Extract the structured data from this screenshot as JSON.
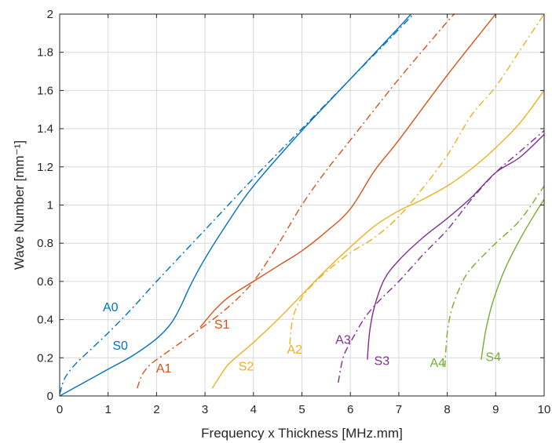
{
  "chart_data": {
    "type": "line",
    "xlabel": "Frequency x Thickness [MHz.mm]",
    "ylabel": "Wave Number [mm⁻¹]",
    "xlim": [
      0,
      10
    ],
    "ylim": [
      0,
      2
    ],
    "grid": true,
    "x_ticks": [
      "0",
      "1",
      "2",
      "3",
      "4",
      "5",
      "6",
      "7",
      "8",
      "9",
      "10"
    ],
    "y_ticks": [
      "0",
      "0.2",
      "0.4",
      "0.6",
      "0.8",
      "1",
      "1.2",
      "1.4",
      "1.6",
      "1.8",
      "2"
    ],
    "colors": {
      "blue": "#0072bd",
      "orange": "#d95319",
      "yellow": "#edb120",
      "purple": "#7e2f8e",
      "green": "#77ac30"
    },
    "series": [
      {
        "name": "A0",
        "style": "dashdot",
        "color": "#0072bd",
        "label_at": [
          1.05,
          0.46
        ],
        "points": [
          [
            0,
            0.01
          ],
          [
            0.1,
            0.09
          ],
          [
            0.3,
            0.16
          ],
          [
            0.5,
            0.21
          ],
          [
            1,
            0.33
          ],
          [
            1.5,
            0.46
          ],
          [
            2,
            0.6
          ],
          [
            3,
            0.87
          ],
          [
            4,
            1.14
          ],
          [
            5,
            1.4
          ],
          [
            6,
            1.66
          ],
          [
            7,
            1.92
          ],
          [
            7.3,
            2.0
          ]
        ]
      },
      {
        "name": "S0",
        "style": "solid",
        "color": "#0072bd",
        "label_at": [
          1.25,
          0.26
        ],
        "points": [
          [
            0,
            0
          ],
          [
            0.5,
            0.07
          ],
          [
            1,
            0.14
          ],
          [
            1.5,
            0.21
          ],
          [
            2,
            0.3
          ],
          [
            2.3,
            0.38
          ],
          [
            2.5,
            0.47
          ],
          [
            2.7,
            0.58
          ],
          [
            3,
            0.72
          ],
          [
            3.5,
            0.92
          ],
          [
            4,
            1.1
          ],
          [
            5,
            1.39
          ],
          [
            6,
            1.66
          ],
          [
            7,
            1.93
          ],
          [
            7.25,
            2.0
          ]
        ]
      },
      {
        "name": "A1",
        "style": "dashdot",
        "color": "#d95319",
        "label_at": [
          2.15,
          0.14
        ],
        "points": [
          [
            1.6,
            0.04
          ],
          [
            1.7,
            0.11
          ],
          [
            1.85,
            0.16
          ],
          [
            2,
            0.19
          ],
          [
            2.5,
            0.28
          ],
          [
            3,
            0.37
          ],
          [
            3.5,
            0.47
          ],
          [
            4,
            0.6
          ],
          [
            4.5,
            0.79
          ],
          [
            5,
            1.0
          ],
          [
            5.5,
            1.18
          ],
          [
            6,
            1.34
          ],
          [
            7,
            1.66
          ],
          [
            8,
            1.96
          ],
          [
            8.15,
            2.0
          ]
        ]
      },
      {
        "name": "S1",
        "style": "solid",
        "color": "#d95319",
        "label_at": [
          3.35,
          0.37
        ],
        "points": [
          [
            2.9,
            0.36
          ],
          [
            3.2,
            0.45
          ],
          [
            3.5,
            0.52
          ],
          [
            4,
            0.6
          ],
          [
            4.5,
            0.68
          ],
          [
            5,
            0.76
          ],
          [
            5.5,
            0.86
          ],
          [
            6,
            0.98
          ],
          [
            6.5,
            1.18
          ],
          [
            7,
            1.34
          ],
          [
            8,
            1.68
          ],
          [
            9,
            2.0
          ]
        ]
      },
      {
        "name": "A2",
        "style": "dashdot",
        "color": "#edb120",
        "label_at": [
          4.85,
          0.24
        ],
        "points": [
          [
            4.75,
            0.27
          ],
          [
            4.8,
            0.39
          ],
          [
            4.9,
            0.47
          ],
          [
            5.1,
            0.55
          ],
          [
            5.5,
            0.65
          ],
          [
            6,
            0.75
          ],
          [
            6.5,
            0.83
          ],
          [
            7,
            0.94
          ],
          [
            7.5,
            1.09
          ],
          [
            8,
            1.26
          ],
          [
            8.5,
            1.47
          ],
          [
            9,
            1.62
          ],
          [
            9.5,
            1.81
          ],
          [
            10,
            2.0
          ]
        ]
      },
      {
        "name": "S2",
        "style": "solid",
        "color": "#edb120",
        "label_at": [
          3.85,
          0.15
        ],
        "points": [
          [
            3.15,
            0.04
          ],
          [
            3.3,
            0.1
          ],
          [
            3.5,
            0.17
          ],
          [
            4,
            0.28
          ],
          [
            4.5,
            0.4
          ],
          [
            5,
            0.53
          ],
          [
            5.5,
            0.66
          ],
          [
            6,
            0.78
          ],
          [
            6.5,
            0.89
          ],
          [
            7,
            0.97
          ],
          [
            7.5,
            1.03
          ],
          [
            8,
            1.1
          ],
          [
            8.5,
            1.19
          ],
          [
            9,
            1.3
          ],
          [
            9.5,
            1.43
          ],
          [
            10,
            1.6
          ]
        ]
      },
      {
        "name": "A3",
        "style": "dashdot",
        "color": "#7e2f8e",
        "label_at": [
          5.85,
          0.29
        ],
        "points": [
          [
            5.75,
            0.07
          ],
          [
            5.85,
            0.2
          ],
          [
            6,
            0.28
          ],
          [
            6.3,
            0.41
          ],
          [
            6.6,
            0.5
          ],
          [
            7,
            0.6
          ],
          [
            7.5,
            0.74
          ],
          [
            8,
            0.87
          ],
          [
            8.5,
            1.03
          ],
          [
            9,
            1.17
          ],
          [
            9.5,
            1.28
          ],
          [
            10,
            1.39
          ]
        ]
      },
      {
        "name": "S3",
        "style": "solid",
        "color": "#7e2f8e",
        "label_at": [
          6.65,
          0.18
        ],
        "points": [
          [
            6.35,
            0.19
          ],
          [
            6.4,
            0.34
          ],
          [
            6.5,
            0.47
          ],
          [
            6.7,
            0.61
          ],
          [
            7,
            0.71
          ],
          [
            7.5,
            0.83
          ],
          [
            8,
            0.93
          ],
          [
            8.5,
            1.04
          ],
          [
            9,
            1.17
          ],
          [
            9.5,
            1.25
          ],
          [
            10,
            1.37
          ]
        ]
      },
      {
        "name": "A4",
        "style": "dashdot",
        "color": "#77ac30",
        "label_at": [
          7.8,
          0.17
        ],
        "points": [
          [
            7.95,
            0.15
          ],
          [
            8,
            0.33
          ],
          [
            8.1,
            0.46
          ],
          [
            8.3,
            0.59
          ],
          [
            8.5,
            0.67
          ],
          [
            9,
            0.8
          ],
          [
            9.5,
            0.92
          ],
          [
            10,
            1.1
          ]
        ]
      },
      {
        "name": "S4",
        "style": "solid",
        "color": "#77ac30",
        "label_at": [
          8.95,
          0.2
        ],
        "points": [
          [
            8.7,
            0.19
          ],
          [
            8.8,
            0.35
          ],
          [
            8.95,
            0.5
          ],
          [
            9.2,
            0.67
          ],
          [
            9.5,
            0.82
          ],
          [
            9.8,
            0.95
          ],
          [
            10,
            1.03
          ]
        ]
      }
    ]
  }
}
